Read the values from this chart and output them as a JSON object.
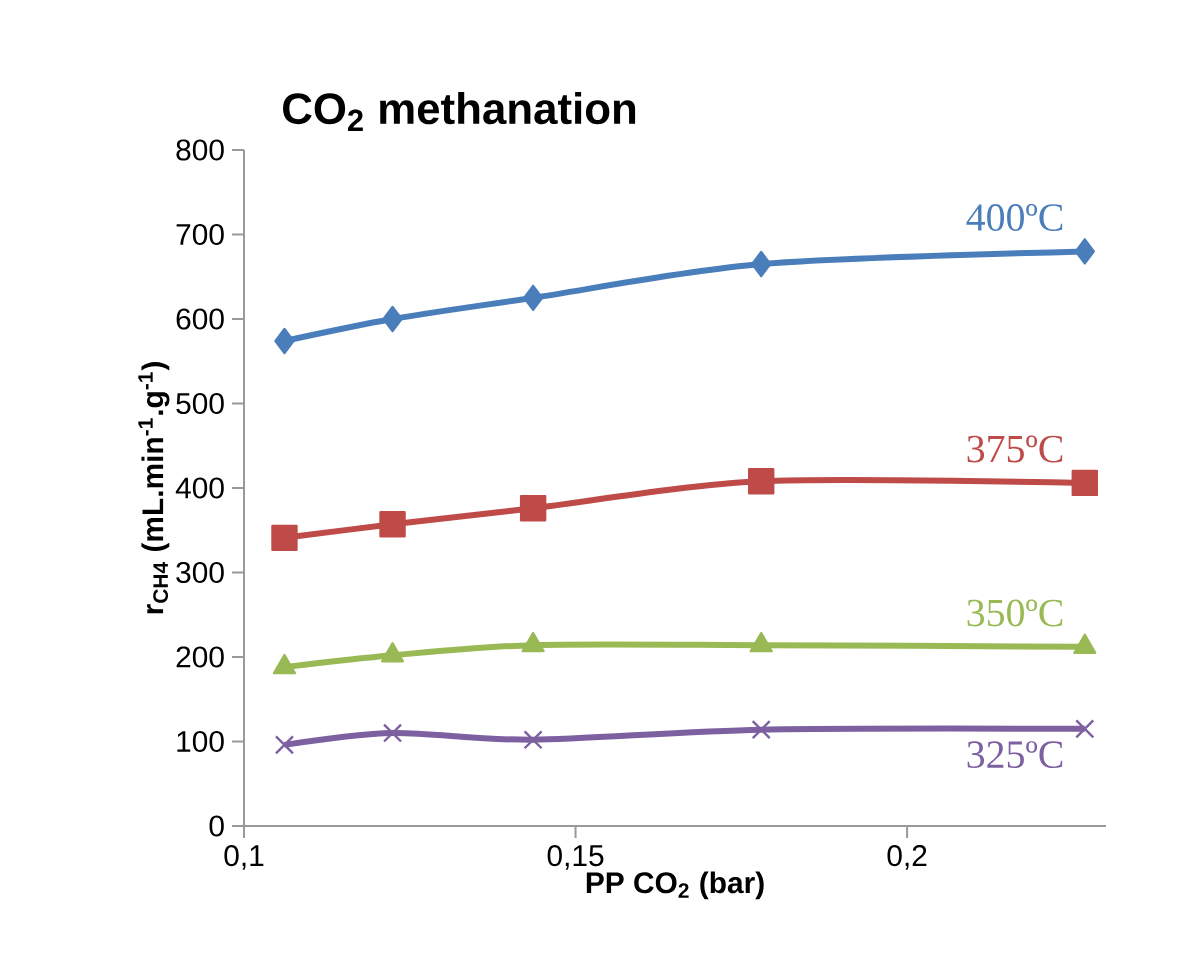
{
  "chart_data": {
    "type": "line",
    "title": "CO$_{2}$ methanation",
    "xlabel": "PP CO$_{2}$ (bar)",
    "ylabel": "r$_{CH4}$ (mL.min$^{-1}$.g$^{-1}$)",
    "x": [
      0.1061,
      0.1224,
      0.1436,
      0.178,
      0.2268
    ],
    "xlim": [
      0.1,
      0.23
    ],
    "xticks": [
      {
        "value": 0.1,
        "label": "0,1"
      },
      {
        "value": 0.15,
        "label": "0,15"
      },
      {
        "value": 0.2,
        "label": "0,2"
      }
    ],
    "ylim": [
      0,
      800
    ],
    "yticks": [
      0,
      100,
      200,
      300,
      400,
      500,
      600,
      700,
      800
    ],
    "grid": false,
    "legend": false,
    "series": [
      {
        "name": "400ºC",
        "color": "#4a7ebb",
        "marker": "diamond",
        "values": [
          574,
          600,
          625,
          665,
          680
        ]
      },
      {
        "name": "375ºC",
        "color": "#be4b48",
        "marker": "square",
        "values": [
          341,
          357,
          376,
          408,
          406
        ]
      },
      {
        "name": "350ºC",
        "color": "#98b954",
        "marker": "triangle",
        "values": [
          188,
          202,
          214,
          214,
          212
        ]
      },
      {
        "name": "325ºC",
        "color": "#7d60a0",
        "marker": "cross",
        "values": [
          96,
          110,
          102,
          114,
          115
        ]
      }
    ]
  }
}
